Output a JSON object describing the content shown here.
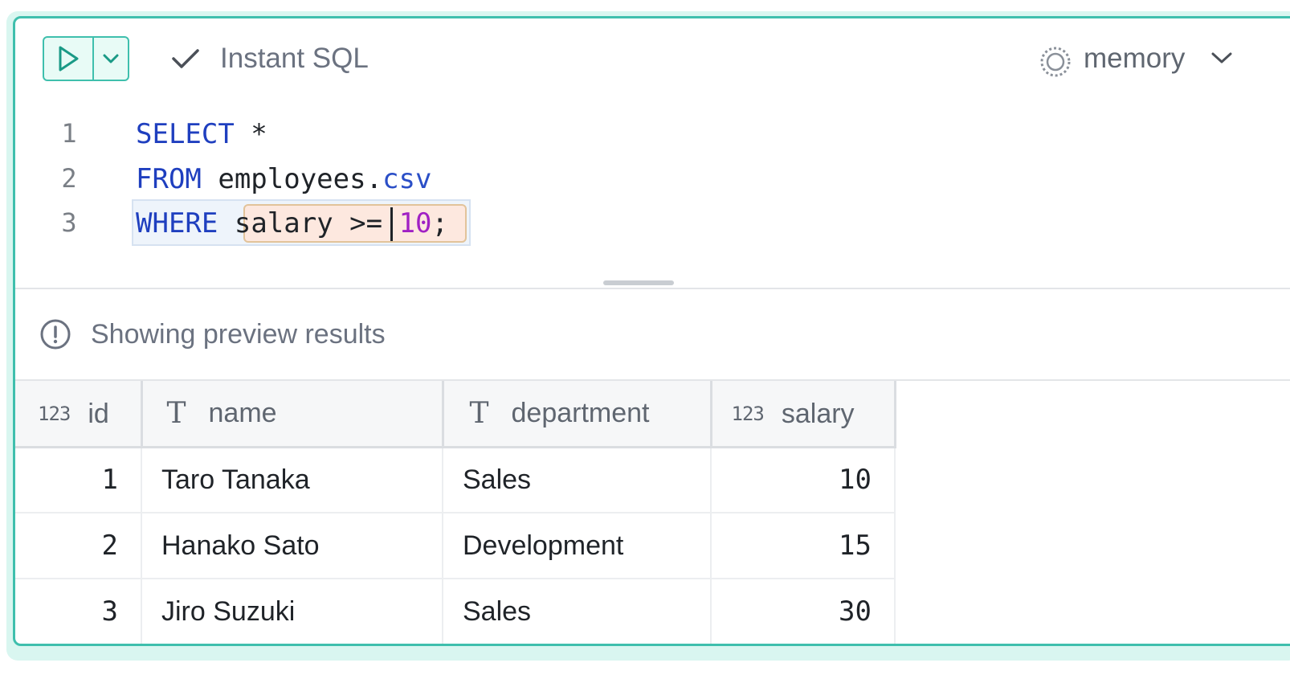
{
  "toolbar": {
    "run_icon": "play-icon",
    "dropdown_icon": "chevron-down-icon",
    "instant_icon": "check-icon",
    "instant_label": "Instant SQL",
    "database_icon": "database-status-icon",
    "database_label": "memory",
    "database_chevron": "chevron-down-icon"
  },
  "editor": {
    "line_numbers": [
      "1",
      "2",
      "3"
    ],
    "line1": {
      "keyword": "SELECT",
      "rest": " *"
    },
    "line2": {
      "keyword": "FROM",
      "table": " employees.",
      "ext": "csv"
    },
    "line3": {
      "keyword": "WHERE",
      "cond_a": "salary >",
      "cond_b": "= ",
      "number": "10",
      "end": ";"
    }
  },
  "preview": {
    "icon": "info-icon",
    "text": "Showing preview results"
  },
  "table": {
    "columns": [
      {
        "type": "123",
        "type_icon": "number-type-icon",
        "label": "id"
      },
      {
        "type": "T",
        "type_icon": "text-type-icon",
        "label": "name"
      },
      {
        "type": "T",
        "type_icon": "text-type-icon",
        "label": "department"
      },
      {
        "type": "123",
        "type_icon": "number-type-icon",
        "label": "salary"
      }
    ],
    "rows": [
      {
        "id": "1",
        "name": "Taro Tanaka",
        "department": "Sales",
        "salary": "10"
      },
      {
        "id": "2",
        "name": "Hanako Sato",
        "department": "Development",
        "salary": "15"
      },
      {
        "id": "3",
        "name": "Jiro Suzuki",
        "department": "Sales",
        "salary": "30"
      }
    ]
  },
  "colors": {
    "accent": "#3fbfad",
    "keyword": "#1f3fbf",
    "number": "#a021c4",
    "highlight": "#fde8df"
  }
}
